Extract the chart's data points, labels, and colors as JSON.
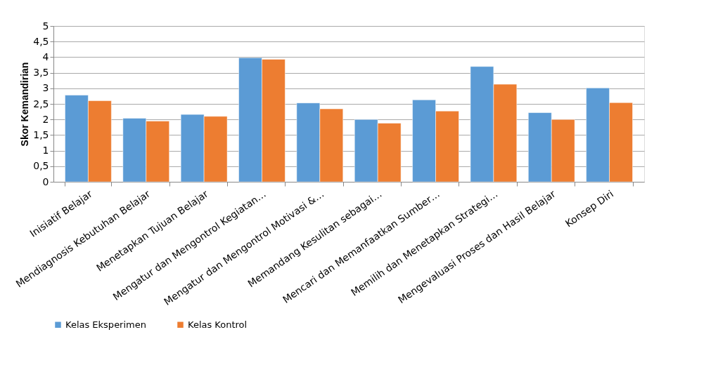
{
  "chart_data": {
    "type": "bar",
    "ylabel": "Skor Kemandirian",
    "categories": [
      "Inisiatif Belajar",
      "Mendiagnosis Kebutuhan Belajar",
      "Menetapkan Tujuan Belajar",
      "Mengatur dan Mengontrol Kegiatan…",
      "Mengatur dan Mengontrol Motivasi &…",
      "Memandang Kesulitan sebagai…",
      "Mencari dan Memanfaatkan Sumber…",
      "Memilih dan Menetapkan Strategi…",
      "Mengevaluasi Proses dan Hasil Belajar",
      "Konsep Diri"
    ],
    "series": [
      {
        "name": "Kelas Eksperimen",
        "color": "#5b9bd5",
        "values": [
          2.78,
          2.04,
          2.16,
          3.98,
          2.53,
          2.0,
          2.63,
          3.7,
          2.22,
          3.01
        ]
      },
      {
        "name": "Kelas Kontrol",
        "color": "#ed7d31",
        "values": [
          2.6,
          1.95,
          2.1,
          3.93,
          2.34,
          1.88,
          2.27,
          3.13,
          2.0,
          2.54
        ]
      }
    ],
    "ylim": [
      0,
      5
    ],
    "yticks": [
      0,
      {
        "value": 0.5,
        "label": "0,5"
      },
      1,
      {
        "value": 1.5,
        "label": "1,5"
      },
      2,
      {
        "value": 2.5,
        "label": "2,5"
      },
      3,
      {
        "value": 3.5,
        "label": "3,5"
      },
      4,
      {
        "value": 4.5,
        "label": "4,5"
      },
      5
    ],
    "grid": "y",
    "legend": "bottom"
  }
}
